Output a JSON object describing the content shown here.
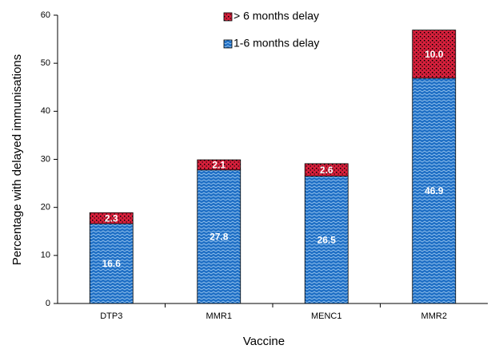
{
  "chart_data": {
    "type": "stacked_bar",
    "x_label": "Vaccine",
    "y_label": "Percentage with delayed immunisations",
    "categories": [
      "DTP3",
      "MMR1",
      "MENC1",
      "MMR2"
    ],
    "series": [
      {
        "name": "1-6 months delay",
        "color": "#1f6fc5",
        "values": [
          16.6,
          27.8,
          26.5,
          46.9
        ]
      },
      {
        "name": "> 6 months delay",
        "color": "#d8203c",
        "values": [
          2.3,
          2.1,
          2.6,
          10
        ],
        "value_labels": [
          "2.3",
          "2.1",
          "2.6",
          "10.0"
        ]
      }
    ],
    "ylim": [
      0,
      60
    ],
    "yticks": [
      0,
      10,
      20,
      30,
      40,
      50,
      60
    ],
    "grid": false
  }
}
